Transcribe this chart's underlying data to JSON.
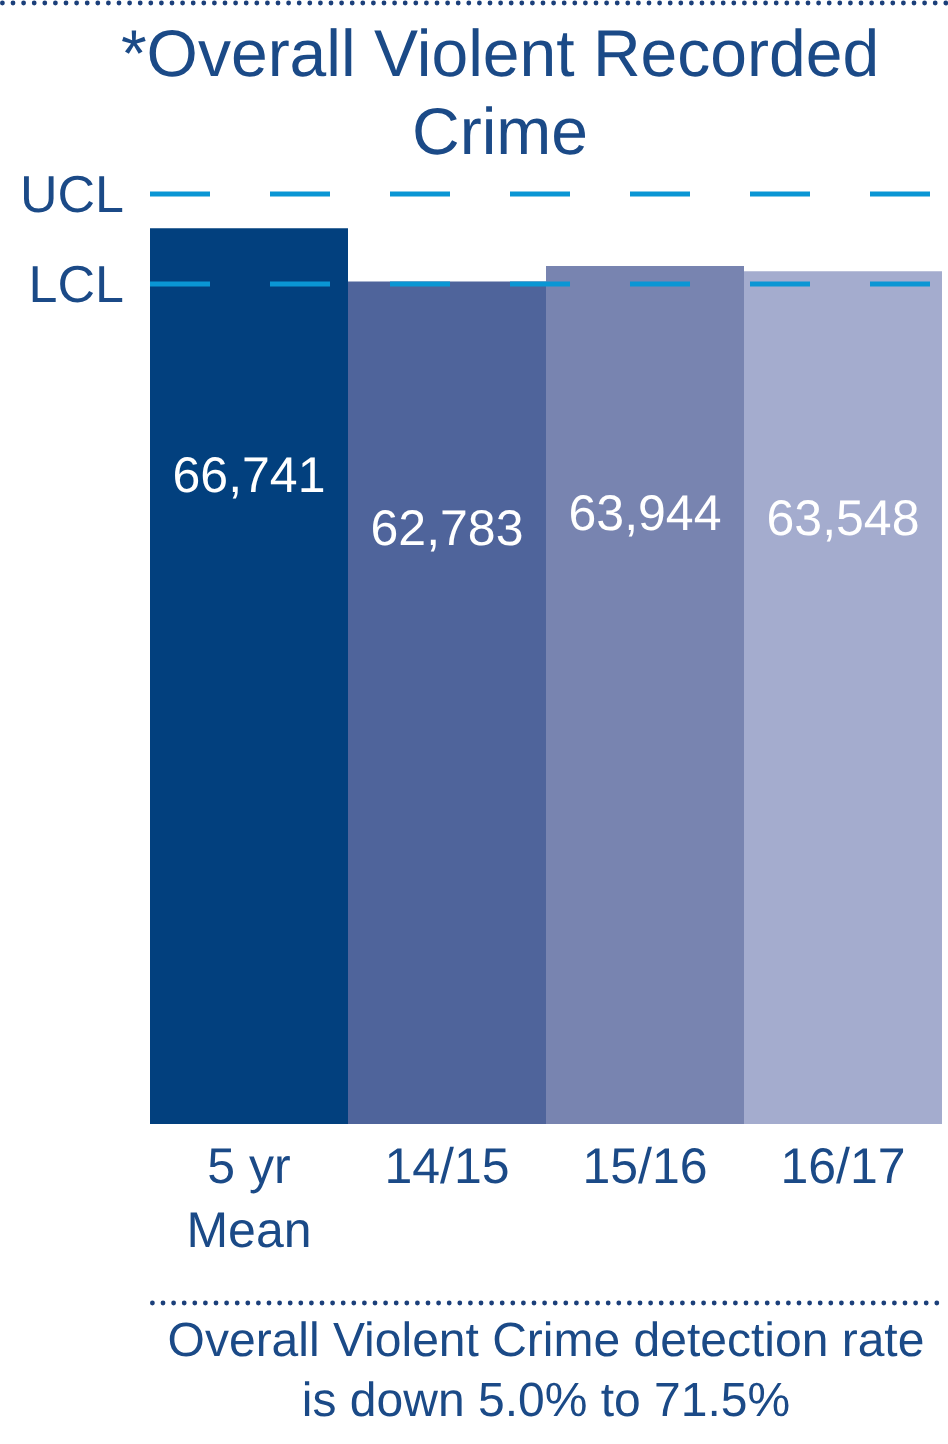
{
  "chart_data": {
    "type": "bar",
    "title": "*Overall Violent Recorded Crime",
    "categories": [
      "5 yr Mean",
      "14/15",
      "15/16",
      "16/17"
    ],
    "values": [
      66741,
      62783,
      63944,
      63548
    ],
    "value_labels": [
      "66,741",
      "62,783",
      "63,944",
      "63,548"
    ],
    "colors": [
      "#02407e",
      "#4f649b",
      "#7884b0",
      "#a4acce"
    ],
    "tick_labels": "x",
    "ref_lines": [
      {
        "axis": "y",
        "value": 69300,
        "label": "UCL",
        "color": "#0a96d4",
        "line_style": "dashed"
      },
      {
        "axis": "y",
        "value": 62600,
        "label": "LCL",
        "color": "#0a96d4",
        "line_style": "dashed"
      }
    ],
    "annotations": [
      "Overall Violent Crime detection rate is down 5.0% to 71.5%"
    ]
  }
}
